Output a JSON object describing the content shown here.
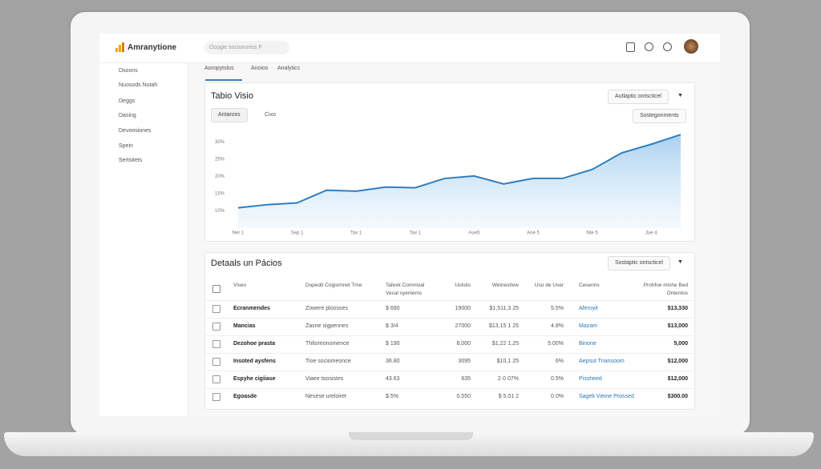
{
  "header": {
    "logo": "Amranytione",
    "search": "Ocogie socionorios F"
  },
  "sidebar": [
    "Dsoons",
    "Nuosods Nutah",
    "Deggs",
    "Dasing",
    "Devoosiones",
    "Spein",
    "Sertsitets"
  ],
  "tabs": [
    "Aoropytslos",
    "Anoios",
    "Analytics"
  ],
  "chart_card": {
    "title": "Tabio Visio",
    "dropdown": "Autlaptic ontscticel",
    "subtabs": [
      "Antaroxs",
      "Cixo"
    ],
    "button": "Sostegonments",
    "chart": {
      "type": "line",
      "categories": [
        "Ner 1",
        null,
        "Sep 1",
        null,
        "Tav 1",
        null,
        "Tav 1",
        null,
        "Aue5",
        null,
        "Ane 5",
        null,
        "Nte 5",
        null,
        "Jue 4",
        null
      ],
      "values": [
        10.9,
        11.8,
        12.3,
        16.0,
        15.7,
        16.9,
        16.7,
        19.4,
        20.1,
        17.8,
        19.4,
        19.4,
        22.0,
        26.8,
        29.3,
        32.1
      ],
      "ylim": [
        5,
        34
      ],
      "yticks": [
        {
          "value": 10,
          "label": "10%"
        },
        {
          "value": 15,
          "label": "15%"
        },
        {
          "value": 20,
          "label": "20%"
        },
        {
          "value": 25,
          "label": "25%"
        },
        {
          "value": 30,
          "label": "30%"
        }
      ],
      "color": "#2f7fbd",
      "grid": false
    }
  },
  "table_card": {
    "title": "Detaals un Pácios",
    "dropdown": "Sostaptic ontscticel",
    "columns": [
      "Viseo",
      "Dopedit Cogiomnet Tme",
      "Tafexk Commoal Vecal syeniems",
      "Uolstis",
      "Weinestlow",
      "Uso de User",
      "Cesenns",
      "Prohfoe mishe Bed Ontentos"
    ],
    "rows": [
      [
        "Ecranmendes",
        "Zowere ploosses",
        "$ 690",
        "19000",
        "$1,511,3 25",
        "5.5%",
        "Aferoyit",
        "$13,330"
      ],
      [
        "Mancias",
        "Zasne sigpennes",
        "$ 3/4",
        "27000",
        "$13,15 1 25",
        "4.8%",
        "Mazam",
        "$13,000"
      ],
      [
        "Dezohoe prasta",
        "Thltoreonomence",
        "$ 190",
        "8,000",
        "$1,22 1,25",
        "5.00%",
        "Binone",
        "5,000"
      ],
      [
        "Insoted aysfens",
        "Tioe sociomeonce",
        "36.80",
        "3095",
        "$10,1 25",
        "6%",
        "Aepsut Tnansoom",
        "$12,000"
      ],
      [
        "Espyhe cigiiase",
        "Viaee toosistes",
        "43.63",
        "635",
        "2·0 07%",
        "0.5%",
        "Pissheed",
        "$12,000"
      ],
      [
        "Egoasde",
        "Nesese ureloiret",
        "$.5%",
        "0.550",
        "$ 5.01 2",
        "0.0%",
        "Sagek Vieine Prossed",
        "$300.00"
      ]
    ]
  }
}
